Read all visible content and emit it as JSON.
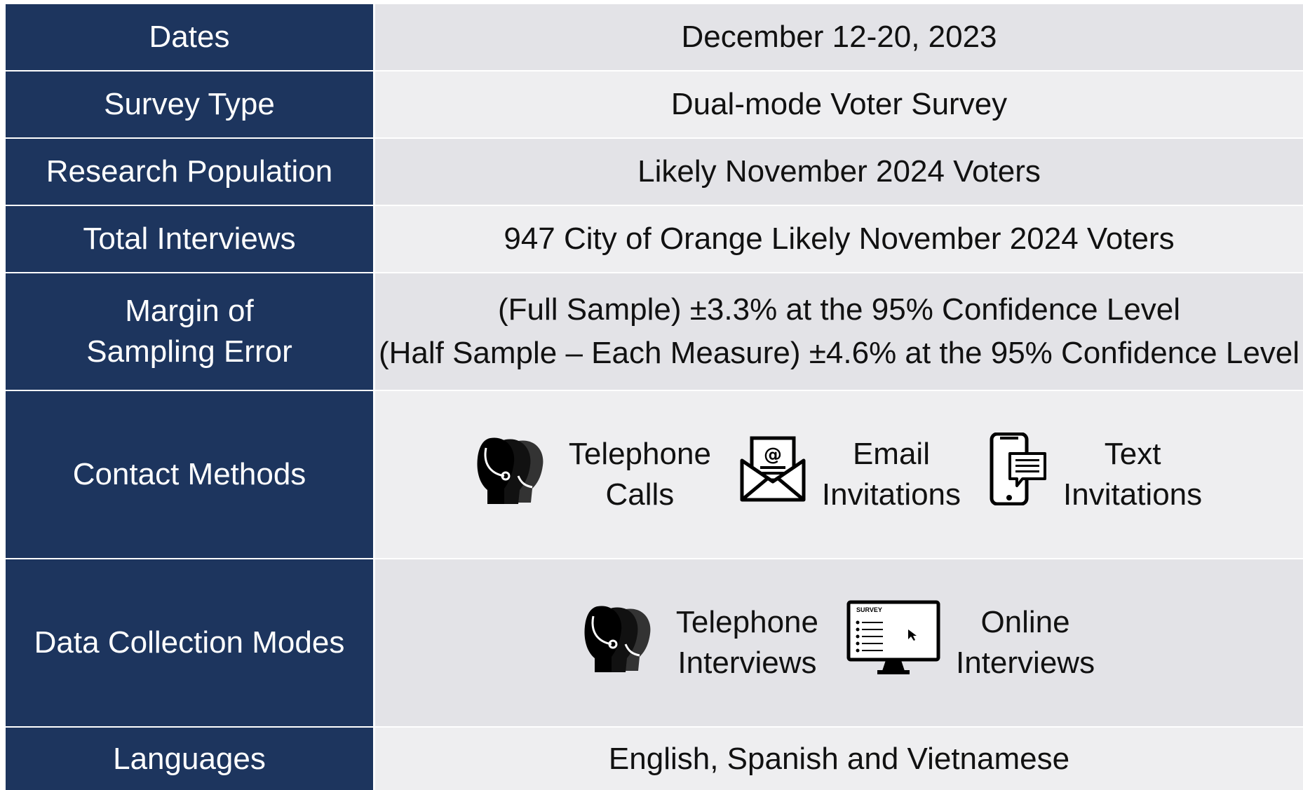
{
  "table": {
    "rows": [
      {
        "label": [
          "Dates"
        ],
        "value": [
          "December 12-20, 2023"
        ]
      },
      {
        "label": [
          "Survey Type"
        ],
        "value": [
          "Dual-mode Voter Survey"
        ]
      },
      {
        "label": [
          "Research Population"
        ],
        "value": [
          "Likely November 2024 Voters"
        ]
      },
      {
        "label": [
          "Total Interviews"
        ],
        "value": [
          "947 City of Orange Likely November 2024 Voters"
        ]
      },
      {
        "label": [
          "Margin of",
          "Sampling Error"
        ],
        "value": [
          "(Full Sample) ±3.3% at the 95% Confidence Level",
          "(Half Sample – Each Measure) ±4.6% at the 95% Confidence Level"
        ]
      },
      {
        "label": [
          "Contact Methods"
        ],
        "items": [
          {
            "icon": "headset",
            "text": [
              "Telephone",
              "Calls"
            ]
          },
          {
            "icon": "email",
            "text": [
              "Email",
              "Invitations"
            ]
          },
          {
            "icon": "phone",
            "text": [
              "Text",
              "Invitations"
            ]
          }
        ]
      },
      {
        "label": [
          "Data Collection Modes"
        ],
        "items": [
          {
            "icon": "headset",
            "text": [
              "Telephone",
              "Interviews"
            ]
          },
          {
            "icon": "monitor",
            "screen_text": "SURVEY",
            "text": [
              "Online",
              "Interviews"
            ]
          }
        ]
      },
      {
        "label": [
          "Languages"
        ],
        "value": [
          "English, Spanish and Vietnamese"
        ]
      }
    ]
  }
}
